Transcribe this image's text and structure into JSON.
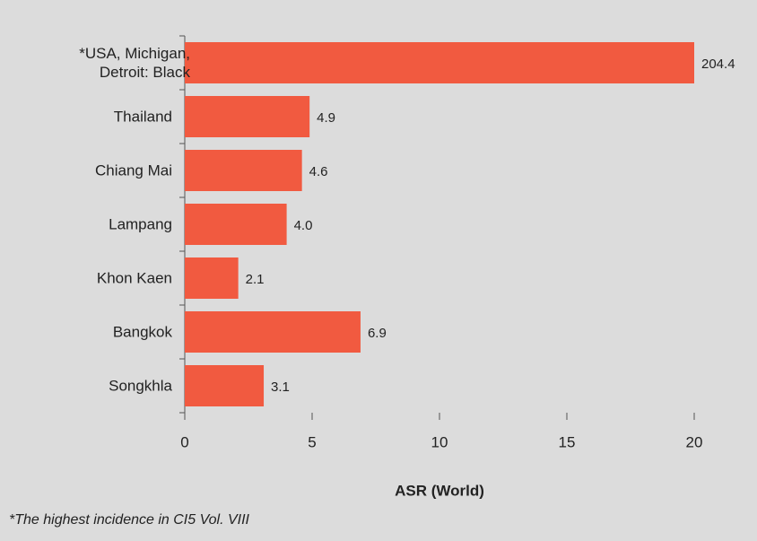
{
  "chart_data": {
    "type": "bar",
    "orientation": "horizontal",
    "categories": [
      "*USA, Michigan, Detroit: Black",
      "Thailand",
      "Chiang Mai",
      "Lampang",
      "Khon Kaen",
      "Bangkok",
      "Songkhla"
    ],
    "values": [
      204.4,
      4.9,
      4.6,
      4.0,
      2.1,
      6.9,
      3.1
    ],
    "value_labels": [
      "204.4",
      "4.9",
      "4.6",
      "4.0",
      "2.1",
      "6.9",
      "3.1"
    ],
    "color": "#f15a40",
    "xlim": [
      0,
      20
    ],
    "xticks": [
      0,
      5,
      10,
      15,
      20
    ],
    "xlabel": "ASR (World)",
    "footnote": "*The highest incidence in CI5 Vol. VIII",
    "grid": false
  }
}
